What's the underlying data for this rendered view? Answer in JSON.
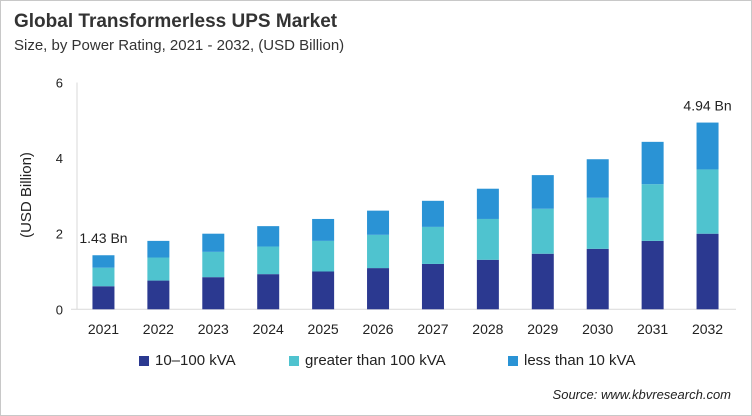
{
  "chart_data": {
    "type": "bar",
    "stacked": true,
    "title": "Global Transformerless  UPS Market",
    "subtitle": "Size, by Power Rating, 2021 - 2032, (USD Billion)",
    "xlabel": "",
    "ylabel": "(USD Billion)",
    "ylim": [
      0,
      6
    ],
    "yticks": [
      0,
      2,
      4,
      6
    ],
    "grid": false,
    "legend_placement": "bottom",
    "categories": [
      "2021",
      "2022",
      "2023",
      "2024",
      "2025",
      "2026",
      "2027",
      "2028",
      "2029",
      "2030",
      "2031",
      "2032"
    ],
    "series": [
      {
        "name": "10–100 kVA",
        "color": "#2B3990",
        "values": [
          0.61,
          0.76,
          0.85,
          0.93,
          1.0,
          1.09,
          1.2,
          1.31,
          1.47,
          1.6,
          1.81,
          2.0
        ]
      },
      {
        "name": "greater than 100 kVA",
        "color": "#4FC3CF",
        "values": [
          0.49,
          0.61,
          0.67,
          0.73,
          0.81,
          0.88,
          0.98,
          1.08,
          1.19,
          1.35,
          1.5,
          1.7
        ]
      },
      {
        "name": "less than 10 kVA",
        "color": "#2A93D5",
        "values": [
          0.33,
          0.44,
          0.48,
          0.54,
          0.58,
          0.64,
          0.69,
          0.8,
          0.89,
          1.02,
          1.12,
          1.24
        ]
      }
    ],
    "annotations": [
      {
        "category": "2021",
        "text": "1.43 Bn"
      },
      {
        "category": "2032",
        "text": "4.94 Bn"
      }
    ]
  },
  "source": "Source: www.kbvresearch.com"
}
